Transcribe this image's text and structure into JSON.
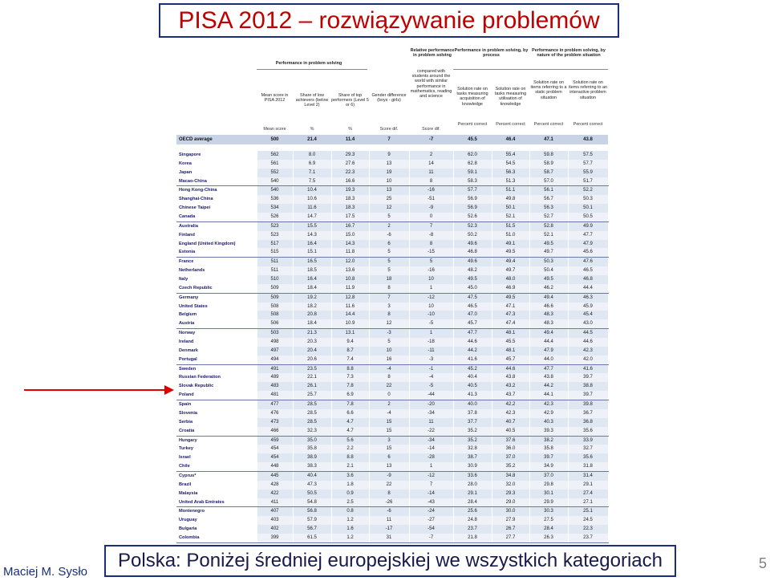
{
  "title": "PISA 2012 – rozwiązywanie problemów",
  "footer": "Polska: Poniżej średniej europejskiej we wszystkich kategoriach",
  "author": "Maciej M. Sysło",
  "page_number": "5",
  "table": {
    "header": {
      "group1": "Performance in problem solving",
      "group2": "Relative performance in problem solving",
      "group3": "Performance in problem solving, by process",
      "group4": "Performance in problem solving, by nature of the problem situation",
      "col1": "Mean score in PISA 2012",
      "col2": "Share of low achievers (below Level 2)",
      "col3": "Share of top performers (Level 5 or 6)",
      "col4": "Gender difference (boys - girls)",
      "col5": "compared with students around the world with similar performance in mathematics, reading and science",
      "col6": "Solution rate on tasks measuring acquisition of knowledge",
      "col7": "Solution rate on tasks measuring utilisation of knowledge",
      "col8": "Solution rate on items referring to a static problem situation",
      "col9": "Solution rate on items referring to an interactive problem situation",
      "units": [
        "Mean score",
        "%",
        "%",
        "Score dif.",
        "Score dif.",
        "Percent correct",
        "Percent correct",
        "Percent correct",
        "Percent correct"
      ]
    },
    "oecd": [
      "OECD average",
      "500",
      "21.4",
      "11.4",
      "7",
      "-7",
      "45.5",
      "46.4",
      "47.1",
      "43.8"
    ],
    "rows": [
      [
        "Singapore",
        "562",
        "8.0",
        "29.3",
        "9",
        "2",
        "62.0",
        "55.4",
        "59.8",
        "57.5"
      ],
      [
        "Korea",
        "561",
        "6.9",
        "27.6",
        "13",
        "14",
        "62.8",
        "54.5",
        "58.9",
        "57.7"
      ],
      [
        "Japan",
        "552",
        "7.1",
        "22.3",
        "19",
        "11",
        "59.1",
        "56.3",
        "58.7",
        "55.9"
      ],
      [
        "Macao-China",
        "540",
        "7.5",
        "16.6",
        "10",
        "8",
        "58.3",
        "51.3",
        "57.0",
        "51.7"
      ],
      [
        "Hong Kong-China",
        "540",
        "10.4",
        "19.3",
        "13",
        "-16",
        "57.7",
        "51.1",
        "56.1",
        "52.2"
      ],
      [
        "Shanghai-China",
        "536",
        "10.6",
        "18.3",
        "25",
        "-51",
        "56.9",
        "49.8",
        "56.7",
        "50.3"
      ],
      [
        "Chinese Taipei",
        "534",
        "11.6",
        "18.3",
        "12",
        "-9",
        "56.9",
        "50.1",
        "56.3",
        "50.1"
      ],
      [
        "Canada",
        "526",
        "14.7",
        "17.5",
        "5",
        "0",
        "52.6",
        "52.1",
        "52.7",
        "50.5"
      ],
      [
        "Australia",
        "523",
        "15.5",
        "16.7",
        "2",
        "7",
        "52.3",
        "51.5",
        "52.8",
        "49.9"
      ],
      [
        "Finland",
        "523",
        "14.3",
        "15.0",
        "-6",
        "-8",
        "50.2",
        "51.0",
        "52.1",
        "47.7"
      ],
      [
        "England (United Kingdom)",
        "517",
        "16.4",
        "14.3",
        "6",
        "8",
        "49.6",
        "49.1",
        "49.5",
        "47.9"
      ],
      [
        "Estonia",
        "515",
        "15.1",
        "11.8",
        "5",
        "-15",
        "46.8",
        "49.5",
        "49.7",
        "45.6"
      ],
      [
        "France",
        "511",
        "16.5",
        "12.0",
        "5",
        "5",
        "49.6",
        "49.4",
        "50.3",
        "47.6"
      ],
      [
        "Netherlands",
        "511",
        "18.5",
        "13.6",
        "5",
        "-16",
        "48.2",
        "49.7",
        "50.4",
        "46.5"
      ],
      [
        "Italy",
        "510",
        "16.4",
        "10.8",
        "18",
        "10",
        "49.5",
        "48.0",
        "49.5",
        "46.8"
      ],
      [
        "Czech Republic",
        "509",
        "18.4",
        "11.9",
        "8",
        "1",
        "45.0",
        "46.9",
        "46.2",
        "44.4"
      ],
      [
        "Germany",
        "509",
        "19.2",
        "12.8",
        "7",
        "-12",
        "47.5",
        "49.5",
        "49.4",
        "46.3"
      ],
      [
        "United States",
        "508",
        "18.2",
        "11.6",
        "3",
        "10",
        "46.5",
        "47.1",
        "46.6",
        "45.9"
      ],
      [
        "Belgium",
        "508",
        "20.8",
        "14.4",
        "8",
        "-10",
        "47.0",
        "47.3",
        "48.3",
        "45.4"
      ],
      [
        "Austria",
        "506",
        "18.4",
        "10.9",
        "12",
        "-5",
        "45.7",
        "47.4",
        "48.3",
        "43.0"
      ],
      [
        "Norway",
        "503",
        "21.3",
        "13.1",
        "-3",
        "1",
        "47.7",
        "48.1",
        "49.4",
        "44.5"
      ],
      [
        "Ireland",
        "498",
        "20.3",
        "9.4",
        "5",
        "-18",
        "44.6",
        "45.5",
        "44.4",
        "44.6"
      ],
      [
        "Denmark",
        "497",
        "20.4",
        "8.7",
        "10",
        "-11",
        "44.2",
        "48.1",
        "47.9",
        "42.3"
      ],
      [
        "Portugal",
        "494",
        "20.6",
        "7.4",
        "16",
        "-3",
        "41.6",
        "45.7",
        "44.0",
        "42.0"
      ],
      [
        "Sweden",
        "491",
        "23.5",
        "8.8",
        "-4",
        "-1",
        "45.2",
        "44.6",
        "47.7",
        "41.6"
      ],
      [
        "Russian Federation",
        "489",
        "22.1",
        "7.3",
        "8",
        "-4",
        "40.4",
        "43.8",
        "43.8",
        "39.7"
      ],
      [
        "Slovak Republic",
        "483",
        "26.1",
        "7.8",
        "22",
        "-5",
        "40.5",
        "43.2",
        "44.2",
        "38.8"
      ],
      [
        "Poland",
        "481",
        "25.7",
        "6.9",
        "0",
        "-44",
        "41.3",
        "43.7",
        "44.1",
        "39.7"
      ],
      [
        "Spain",
        "477",
        "28.5",
        "7.8",
        "2",
        "-20",
        "40.0",
        "42.2",
        "42.3",
        "39.8"
      ],
      [
        "Slovenia",
        "476",
        "28.5",
        "6.6",
        "-4",
        "-34",
        "37.8",
        "42.3",
        "42.9",
        "36.7"
      ],
      [
        "Serbia",
        "473",
        "28.5",
        "4.7",
        "15",
        "11",
        "37.7",
        "40.7",
        "40.3",
        "36.8"
      ],
      [
        "Croatia",
        "466",
        "32.3",
        "4.7",
        "15",
        "-22",
        "35.2",
        "40.5",
        "39.3",
        "35.6"
      ],
      [
        "Hungary",
        "459",
        "35.0",
        "5.6",
        "3",
        "-34",
        "35.2",
        "37.6",
        "38.2",
        "33.9"
      ],
      [
        "Turkey",
        "454",
        "35.8",
        "2.2",
        "15",
        "-14",
        "32.8",
        "36.0",
        "35.8",
        "32.7"
      ],
      [
        "Israel",
        "454",
        "38.9",
        "8.8",
        "6",
        "-28",
        "38.7",
        "37.0",
        "39.7",
        "35.6"
      ],
      [
        "Chile",
        "448",
        "38.3",
        "2.1",
        "13",
        "1",
        "30.9",
        "35.2",
        "34.9",
        "31.8"
      ],
      [
        "Cyprus*",
        "445",
        "40.4",
        "3.6",
        "-9",
        "-12",
        "33.6",
        "34.8",
        "37.0",
        "31.4"
      ],
      [
        "Brazil",
        "428",
        "47.3",
        "1.8",
        "22",
        "7",
        "28.0",
        "32.0",
        "29.8",
        "29.1"
      ],
      [
        "Malaysia",
        "422",
        "50.5",
        "0.9",
        "8",
        "-14",
        "29.1",
        "29.3",
        "30.1",
        "27.4"
      ],
      [
        "United Arab Emirates",
        "411",
        "54.8",
        "2.5",
        "-26",
        "-43",
        "28.4",
        "29.0",
        "29.9",
        "27.1"
      ],
      [
        "Montenegro",
        "407",
        "56.8",
        "0.8",
        "-6",
        "-24",
        "25.6",
        "30.0",
        "30.3",
        "25.1"
      ],
      [
        "Uruguay",
        "403",
        "57.9",
        "1.2",
        "11",
        "-27",
        "24.8",
        "27.9",
        "27.5",
        "24.5"
      ],
      [
        "Bulgaria",
        "402",
        "56.7",
        "1.6",
        "-17",
        "-54",
        "23.7",
        "26.7",
        "28.4",
        "22.3"
      ],
      [
        "Colombia",
        "399",
        "61.5",
        "1.2",
        "31",
        "-7",
        "21.8",
        "27.7",
        "26.3",
        "23.7"
      ]
    ]
  }
}
